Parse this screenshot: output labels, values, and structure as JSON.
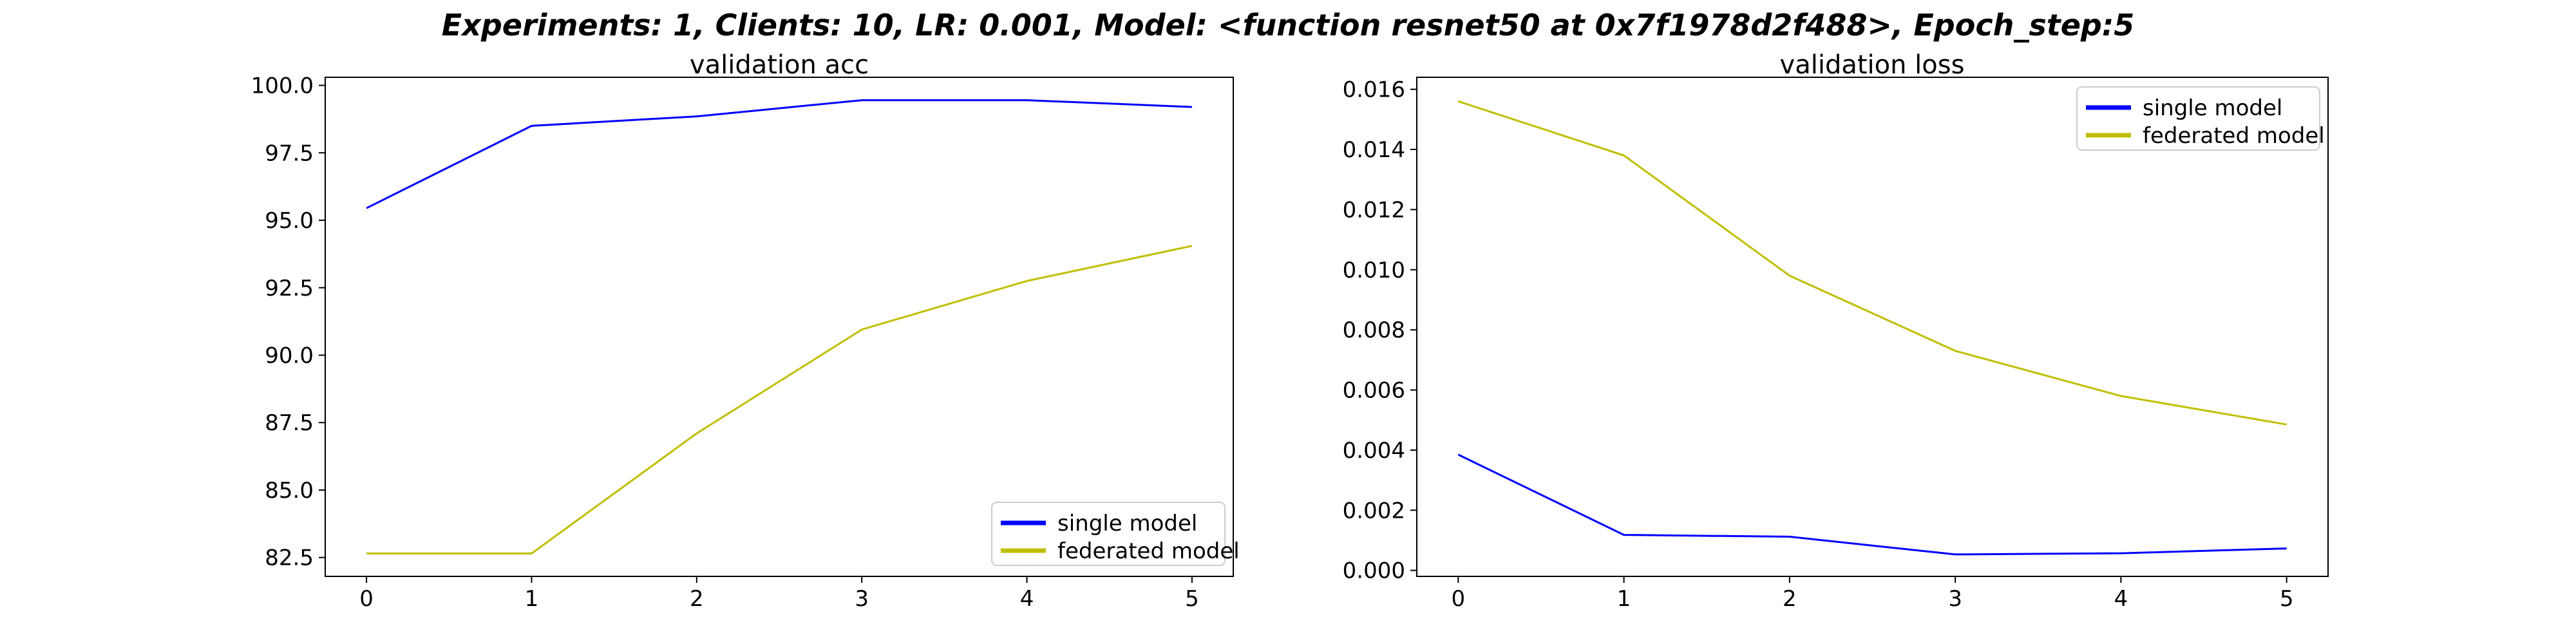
{
  "suptitle": "Experiments: 1, Clients: 10, LR: 0.001, Model: <function resnet50 at 0x7f1978d2f488>, Epoch_step:5",
  "colors": {
    "single": "#0000ff",
    "federated": "#bfbf00"
  },
  "chart_data": [
    {
      "type": "line",
      "title": "validation acc",
      "x": [
        0,
        1,
        2,
        3,
        4,
        5
      ],
      "xticks": [
        0,
        1,
        2,
        3,
        4,
        5
      ],
      "xlim": [
        -0.25,
        5.25
      ],
      "ylim": [
        81.8,
        100.3
      ],
      "yticks": [
        82.5,
        85.0,
        87.5,
        90.0,
        92.5,
        95.0,
        97.5,
        100.0
      ],
      "ytick_labels": [
        "82.5",
        "85.0",
        "87.5",
        "90.0",
        "92.5",
        "95.0",
        "97.5",
        "100.0"
      ],
      "legend_position": "lower-right",
      "grid": false,
      "series": [
        {
          "name": "single model",
          "color": "#0000ff",
          "values": [
            95.45,
            98.5,
            98.85,
            99.45,
            99.45,
            99.2
          ]
        },
        {
          "name": "federated model",
          "color": "#bfbf00",
          "values": [
            82.65,
            82.65,
            87.1,
            90.95,
            92.75,
            94.05
          ]
        }
      ]
    },
    {
      "type": "line",
      "title": "validation loss",
      "x": [
        0,
        1,
        2,
        3,
        4,
        5
      ],
      "xticks": [
        0,
        1,
        2,
        3,
        4,
        5
      ],
      "xlim": [
        -0.25,
        5.25
      ],
      "ylim": [
        -0.0002,
        0.0164
      ],
      "yticks": [
        0.0,
        0.002,
        0.004,
        0.006,
        0.008,
        0.01,
        0.012,
        0.014,
        0.016
      ],
      "ytick_labels": [
        "0.000",
        "0.002",
        "0.004",
        "0.006",
        "0.008",
        "0.010",
        "0.012",
        "0.014",
        "0.016"
      ],
      "legend_position": "upper-right",
      "grid": false,
      "series": [
        {
          "name": "single model",
          "color": "#0000ff",
          "values": [
            0.00385,
            0.00118,
            0.00112,
            0.00053,
            0.00057,
            0.00073
          ]
        },
        {
          "name": "federated model",
          "color": "#bfbf00",
          "values": [
            0.0156,
            0.0138,
            0.0098,
            0.0073,
            0.0058,
            0.00485
          ]
        }
      ]
    }
  ]
}
